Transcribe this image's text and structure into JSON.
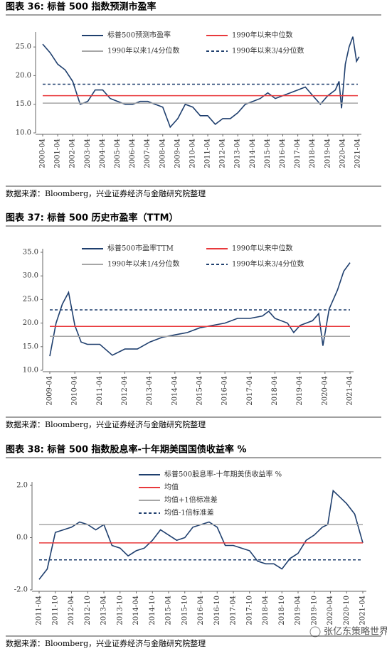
{
  "chart_data": [
    {
      "type": "line",
      "title": "图表 36: 标普 500 指数预测市盈率",
      "note": "数据来源：Bloomberg，兴业证券经济与金融研究院整理",
      "xlim": [
        "2000-04",
        "2021-04"
      ],
      "xticks": [
        "2000-04",
        "2001-04",
        "2002-04",
        "2003-04",
        "2004-04",
        "2005-04",
        "2006-04",
        "2007-04",
        "2008-04",
        "2009-04",
        "2010-04",
        "2011-04",
        "2012-04",
        "2013-04",
        "2014-04",
        "2015-04",
        "2016-04",
        "2017-04",
        "2018-04",
        "2019-04",
        "2020-04",
        "2021-04"
      ],
      "ylim": [
        10,
        27
      ],
      "yticks": [
        {
          "value": 10,
          "label": "10.0"
        },
        {
          "value": 15,
          "label": "15.0"
        },
        {
          "value": 20,
          "label": "20.0"
        },
        {
          "value": 25,
          "label": "25.0"
        }
      ],
      "x": [
        "2000-04",
        "2000-10",
        "2001-04",
        "2001-10",
        "2002-04",
        "2002-10",
        "2003-04",
        "2003-10",
        "2004-04",
        "2004-10",
        "2005-04",
        "2005-10",
        "2006-04",
        "2006-10",
        "2007-04",
        "2007-10",
        "2008-04",
        "2008-10",
        "2009-04",
        "2009-10",
        "2010-04",
        "2010-10",
        "2011-04",
        "2011-10",
        "2012-04",
        "2012-10",
        "2013-04",
        "2013-10",
        "2014-04",
        "2014-10",
        "2015-04",
        "2015-10",
        "2016-04",
        "2016-10",
        "2017-04",
        "2017-10",
        "2018-04",
        "2018-10",
        "2019-04",
        "2019-10",
        "2020-01",
        "2020-03",
        "2020-06",
        "2020-09",
        "2020-12",
        "2021-03",
        "2021-05"
      ],
      "series": [
        {
          "name": "标普500预测市盈率",
          "color": "#1f3f6e",
          "values": [
            25.5,
            24,
            22,
            21,
            19,
            15,
            15.5,
            17.5,
            17.5,
            16,
            15.5,
            15,
            15,
            15.5,
            15.5,
            15,
            14.5,
            11,
            12.5,
            15,
            14.5,
            13,
            13,
            11.5,
            12.5,
            12.5,
            13.5,
            15,
            15.5,
            16,
            17,
            16,
            16.5,
            17,
            17.5,
            18,
            16.5,
            15,
            16.5,
            17.5,
            19,
            14.3,
            22,
            25,
            26.8,
            22.5,
            23.3
          ]
        },
        {
          "name": "1990年以来中位数",
          "color": "#e8393c",
          "value": 16.5
        },
        {
          "name": "1990年以来1/4分位数",
          "color": "#a6a6a6",
          "value": 15.2
        },
        {
          "name": "1990年以来3/4分位数",
          "color": "#1f3f6e",
          "value": 18.5,
          "dashed": true
        }
      ]
    },
    {
      "type": "line",
      "title": "图表 37: 标普 500 历史市盈率（TTM）",
      "note": "数据来源：Bloomberg，兴业证券经济与金融研究院整理",
      "xlim": [
        "2009-04",
        "2021-04"
      ],
      "xticks": [
        "2009-04",
        "2010-04",
        "2011-04",
        "2012-04",
        "2013-04",
        "2014-04",
        "2015-04",
        "2016-04",
        "2017-04",
        "2018-04",
        "2019-04",
        "2020-04",
        "2021-04"
      ],
      "ylim": [
        10,
        35
      ],
      "yticks": [
        {
          "value": 10,
          "label": "10.0"
        },
        {
          "value": 15,
          "label": "15.0"
        },
        {
          "value": 20,
          "label": "20.0"
        },
        {
          "value": 25,
          "label": "25.0"
        },
        {
          "value": 30,
          "label": "30.0"
        },
        {
          "value": 35,
          "label": "35.0"
        }
      ],
      "x": [
        "2009-04",
        "2009-07",
        "2009-10",
        "2010-01",
        "2010-04",
        "2010-07",
        "2010-10",
        "2011-04",
        "2011-10",
        "2012-04",
        "2012-10",
        "2013-04",
        "2013-10",
        "2014-04",
        "2014-10",
        "2015-04",
        "2015-10",
        "2016-04",
        "2016-10",
        "2017-04",
        "2017-10",
        "2018-01",
        "2018-04",
        "2018-10",
        "2019-01",
        "2019-04",
        "2019-10",
        "2020-01",
        "2020-03",
        "2020-06",
        "2020-10",
        "2021-01",
        "2021-04"
      ],
      "series": [
        {
          "name": "标普500市盈率TTM",
          "color": "#1f3f6e",
          "values": [
            13,
            20,
            24,
            26.5,
            19.5,
            16,
            15.5,
            15.5,
            13.2,
            14.5,
            14.5,
            16,
            17,
            17.5,
            18,
            19,
            19.5,
            20,
            21,
            21,
            21.5,
            22.5,
            21,
            20,
            18,
            19.5,
            20.5,
            22,
            15.2,
            23,
            27,
            31,
            32.8
          ]
        },
        {
          "name": "1990年以来中位数",
          "color": "#e8393c",
          "value": 19.3
        },
        {
          "name": "1990年以来1/4分位数",
          "color": "#a6a6a6",
          "value": 17.2
        },
        {
          "name": "1990年以来3/4分位数",
          "color": "#1f3f6e",
          "value": 22.8,
          "dashed": true
        }
      ]
    },
    {
      "type": "line",
      "title": "图表 38: 标普 500 指数股息率-十年期美国国债收益率 %",
      "note": "数据来源：Bloomberg，兴业证券经济与金融研究院整理",
      "xlim": [
        "2011-04",
        "2021-04"
      ],
      "xticks": [
        "2011-04",
        "2011-10",
        "2012-04",
        "2012-10",
        "2013-04",
        "2013-10",
        "2014-04",
        "2014-10",
        "2015-04",
        "2015-10",
        "2016-04",
        "2016-10",
        "2017-04",
        "2017-10",
        "2018-04",
        "2018-10",
        "2019-04",
        "2019-10",
        "2020-04",
        "2020-10",
        "2021-04"
      ],
      "ylim": [
        -2,
        2
      ],
      "yticks": [
        {
          "value": -2,
          "label": "-2.0"
        },
        {
          "value": 0,
          "label": "0.0"
        },
        {
          "value": 2,
          "label": "2.0"
        }
      ],
      "x": [
        "2011-04",
        "2011-07",
        "2011-10",
        "2012-01",
        "2012-04",
        "2012-07",
        "2012-10",
        "2013-01",
        "2013-04",
        "2013-07",
        "2013-10",
        "2014-01",
        "2014-04",
        "2014-07",
        "2014-10",
        "2015-01",
        "2015-04",
        "2015-07",
        "2015-10",
        "2016-01",
        "2016-07",
        "2016-10",
        "2017-01",
        "2017-04",
        "2017-07",
        "2017-10",
        "2018-01",
        "2018-04",
        "2018-07",
        "2018-10",
        "2019-01",
        "2019-04",
        "2019-07",
        "2019-10",
        "2020-01",
        "2020-03",
        "2020-05",
        "2020-07",
        "2020-10",
        "2021-01",
        "2021-04"
      ],
      "series": [
        {
          "name": "标普500股息率-十年期美债收益率 %",
          "color": "#1f3f6e",
          "values": [
            -1.6,
            -1.2,
            0.2,
            0.3,
            0.4,
            0.6,
            0.5,
            0.3,
            0.5,
            -0.3,
            -0.4,
            -0.7,
            -0.5,
            -0.4,
            -0.1,
            0.3,
            0.1,
            -0.1,
            0,
            0.4,
            0.6,
            0.4,
            -0.3,
            -0.3,
            -0.4,
            -0.5,
            -0.9,
            -1,
            -1,
            -1.2,
            -0.8,
            -0.6,
            -0.1,
            0.1,
            0.4,
            0.5,
            1.8,
            1.6,
            1.3,
            0.9,
            -0.2
          ]
        },
        {
          "name": "均值",
          "color": "#e8393c",
          "value": -0.2
        },
        {
          "name": "均值+1倍标准差",
          "color": "#a6a6a6",
          "value": 0.5
        },
        {
          "name": "均值-1倍标准差",
          "color": "#1f3f6e",
          "value": -0.85,
          "dashed": true
        }
      ]
    }
  ],
  "watermark": "张亿东策略世界"
}
